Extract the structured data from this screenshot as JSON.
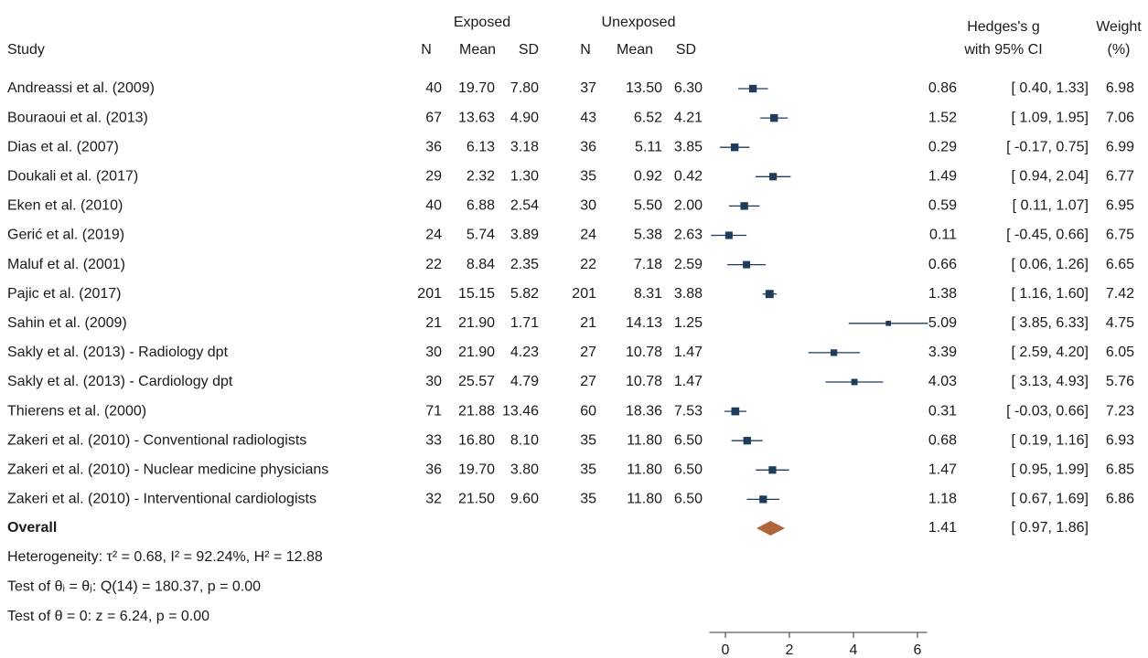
{
  "chart_data": {
    "type": "forest",
    "headers": {
      "study": "Study",
      "exposed": "Exposed",
      "unexposed": "Unexposed",
      "columns": [
        "N",
        "Mean",
        "SD",
        "N",
        "Mean",
        "SD"
      ],
      "effect": "Hedges's g",
      "effect_ci": "with 95% CI",
      "weight": "Weight",
      "weight_unit": "(%)"
    },
    "categories": [
      "Andreassi et al. (2009)",
      "Bouraoui et al. (2013)",
      "Dias et al. (2007)",
      "Doukali et al. (2017)",
      "Eken et al. (2010)",
      "Gerić et al. (2019)",
      "Maluf et al. (2001)",
      "Pajic et al. (2017)",
      "Sahin et al. (2009)",
      "Sakly et al. (2013) - Radiology dpt",
      "Sakly et al. (2013) - Cardiology dpt",
      "Thierens et al. (2000)",
      "Zakeri et al. (2010) - Conventional radiologists",
      "Zakeri et al. (2010) - Nuclear medicine physicians",
      "Zakeri et al. (2010) - Interventional cardiologists"
    ],
    "table": [
      [
        "40",
        "19.70",
        "7.80",
        "37",
        "13.50",
        "6.30"
      ],
      [
        "67",
        "13.63",
        "4.90",
        "43",
        "6.52",
        "4.21"
      ],
      [
        "36",
        "6.13",
        "3.18",
        "36",
        "5.11",
        "3.85"
      ],
      [
        "29",
        "2.32",
        "1.30",
        "35",
        "0.92",
        "0.42"
      ],
      [
        "40",
        "6.88",
        "2.54",
        "30",
        "5.50",
        "2.00"
      ],
      [
        "24",
        "5.74",
        "3.89",
        "24",
        "5.38",
        "2.63"
      ],
      [
        "22",
        "8.84",
        "2.35",
        "22",
        "7.18",
        "2.59"
      ],
      [
        "201",
        "15.15",
        "5.82",
        "201",
        "8.31",
        "3.88"
      ],
      [
        "21",
        "21.90",
        "1.71",
        "21",
        "14.13",
        "1.25"
      ],
      [
        "30",
        "21.90",
        "4.23",
        "27",
        "10.78",
        "1.47"
      ],
      [
        "30",
        "25.57",
        "4.79",
        "27",
        "10.78",
        "1.47"
      ],
      [
        "71",
        "21.88",
        "13.46",
        "60",
        "18.36",
        "7.53"
      ],
      [
        "33",
        "16.80",
        "8.10",
        "35",
        "11.80",
        "6.50"
      ],
      [
        "36",
        "19.70",
        "3.80",
        "35",
        "11.80",
        "6.50"
      ],
      [
        "32",
        "21.50",
        "9.60",
        "35",
        "11.80",
        "6.50"
      ]
    ],
    "values": [
      0.86,
      1.52,
      0.29,
      1.49,
      0.59,
      0.11,
      0.66,
      1.38,
      5.09,
      3.39,
      4.03,
      0.31,
      0.68,
      1.47,
      1.18
    ],
    "ci_lower": [
      0.4,
      1.09,
      -0.17,
      0.94,
      0.11,
      -0.45,
      0.06,
      1.16,
      3.85,
      2.59,
      3.13,
      -0.03,
      0.19,
      0.95,
      0.67
    ],
    "ci_upper": [
      1.33,
      1.95,
      0.75,
      2.04,
      1.07,
      0.66,
      1.26,
      1.6,
      6.33,
      4.2,
      4.93,
      0.66,
      1.16,
      1.99,
      1.69
    ],
    "ci_labels": [
      "[ 0.40, 1.33]",
      "[ 1.09, 1.95]",
      "[ -0.17, 0.75]",
      "[ 0.94, 2.04]",
      "[ 0.11, 1.07]",
      "[ -0.45, 0.66]",
      "[ 0.06, 1.26]",
      "[ 1.16, 1.60]",
      "[ 3.85, 6.33]",
      "[ 2.59, 4.20]",
      "[ 3.13, 4.93]",
      "[ -0.03, 0.66]",
      "[ 0.19, 1.16]",
      "[ 0.95, 1.99]",
      "[ 0.67, 1.69]"
    ],
    "weights": [
      6.98,
      7.06,
      6.99,
      6.77,
      6.95,
      6.75,
      6.65,
      7.42,
      4.75,
      6.05,
      5.76,
      7.23,
      6.93,
      6.85,
      6.86
    ],
    "color": "#1f3c5c",
    "overall": {
      "label": "Overall",
      "value": 1.41,
      "ci_lower": 0.97,
      "ci_upper": 1.86,
      "ci_label": "[ 0.97, 1.86]",
      "color": "#b0653a"
    },
    "notes": [
      "Heterogeneity: τ² = 0.68, I² = 92.24%, H² = 12.88",
      "Test of θᵢ = θⱼ: Q(14) = 180.37, p = 0.00",
      "Test of θ = 0: z = 6.24, p = 0.00"
    ],
    "xlim": [
      -0.5,
      6.3
    ],
    "xticks": [
      0,
      2,
      4,
      6
    ]
  }
}
